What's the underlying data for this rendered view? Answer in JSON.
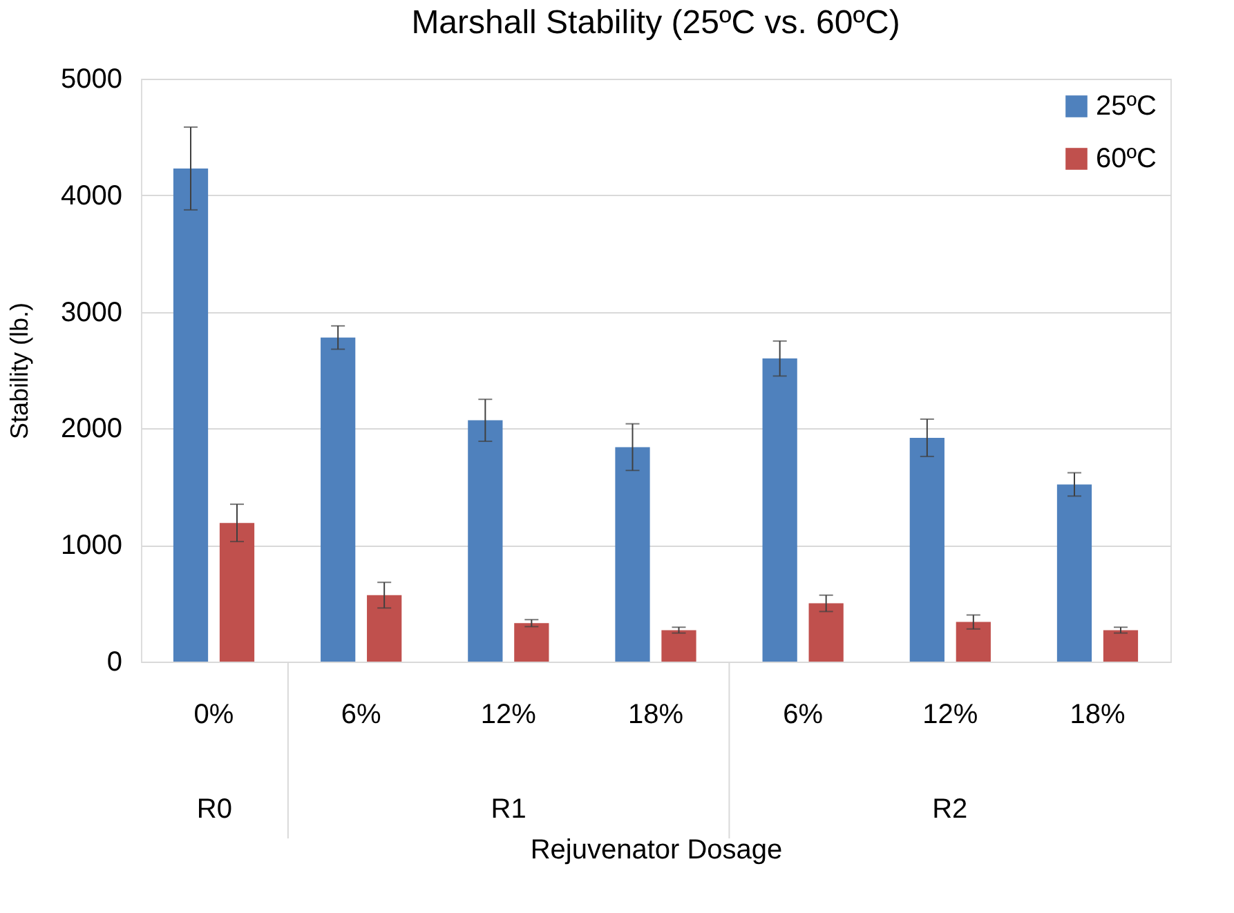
{
  "chart_data": {
    "type": "bar",
    "title": "Marshall Stability (25ºC vs. 60ºC)",
    "xlabel": "Rejuvenator Dosage",
    "ylabel": "Stability (lb.)",
    "categories": [
      "0%",
      "6%",
      "12%",
      "18%",
      "6%",
      "12%",
      "18%"
    ],
    "annotations": [
      "R0",
      "R1",
      "R2"
    ],
    "series": [
      {
        "name": "25ºC",
        "color": "#4f81bd",
        "values": [
          4230,
          2780,
          2070,
          1840,
          2600,
          1920,
          1520
        ],
        "errors": [
          355,
          100,
          180,
          200,
          150,
          160,
          100
        ]
      },
      {
        "name": "60ºC",
        "color": "#c0504d",
        "values": [
          1190,
          570,
          330,
          270,
          500,
          340,
          270
        ],
        "errors": [
          160,
          110,
          30,
          25,
          70,
          60,
          25
        ]
      }
    ],
    "ylim": [
      0,
      5000
    ],
    "yticks": [
      0,
      1000,
      2000,
      3000,
      4000,
      5000
    ],
    "grid": "y",
    "legend": "top right"
  }
}
